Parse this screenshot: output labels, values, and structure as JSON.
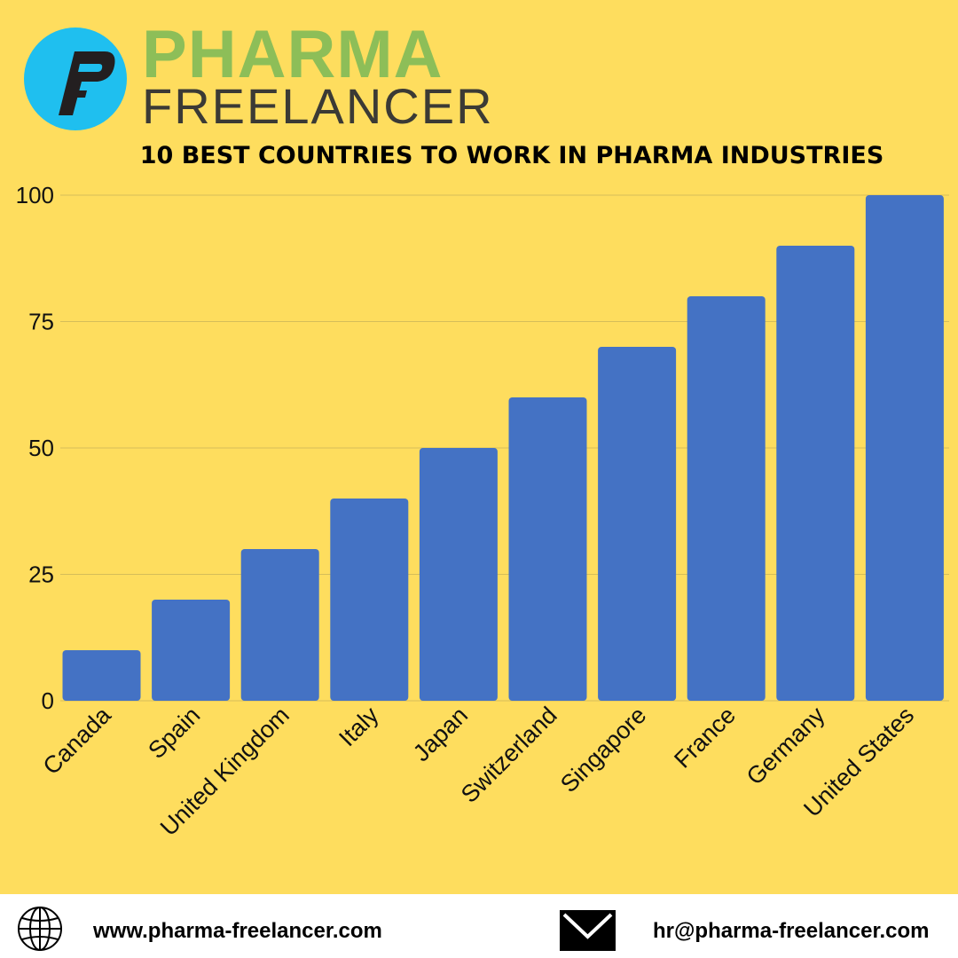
{
  "brand": {
    "line1": "PHARMA",
    "line2": "FREELANCER",
    "logo_icon": "pf-logo-icon",
    "colors": {
      "green": "#8DBE58",
      "dark": "#3B3A35",
      "cyan": "#1FBFEF"
    }
  },
  "colors": {
    "background": "#FEDD5E",
    "bar": "#4472C4",
    "footer": "#FFFFFF"
  },
  "chart_data": {
    "type": "bar",
    "title": "10 BEST COUNTRIES TO WORK IN PHARMA INDUSTRIES",
    "categories": [
      "Canada",
      "Spain",
      "United Kingdom",
      "Italy",
      "Japan",
      "Switzerland",
      "Singapore",
      "France",
      "Germany",
      "United States"
    ],
    "values": [
      10,
      20,
      30,
      40,
      50,
      60,
      70,
      80,
      90,
      100
    ],
    "ylim": [
      0,
      100
    ],
    "yticks": [
      "0",
      "25",
      "50",
      "75",
      "100"
    ],
    "grid": true,
    "legend": "none",
    "xlabel": "",
    "ylabel": ""
  },
  "footer": {
    "website": "www.pharma-freelancer.com",
    "email": "hr@pharma-freelancer.com",
    "website_icon": "globe-icon",
    "email_icon": "envelope-icon"
  }
}
